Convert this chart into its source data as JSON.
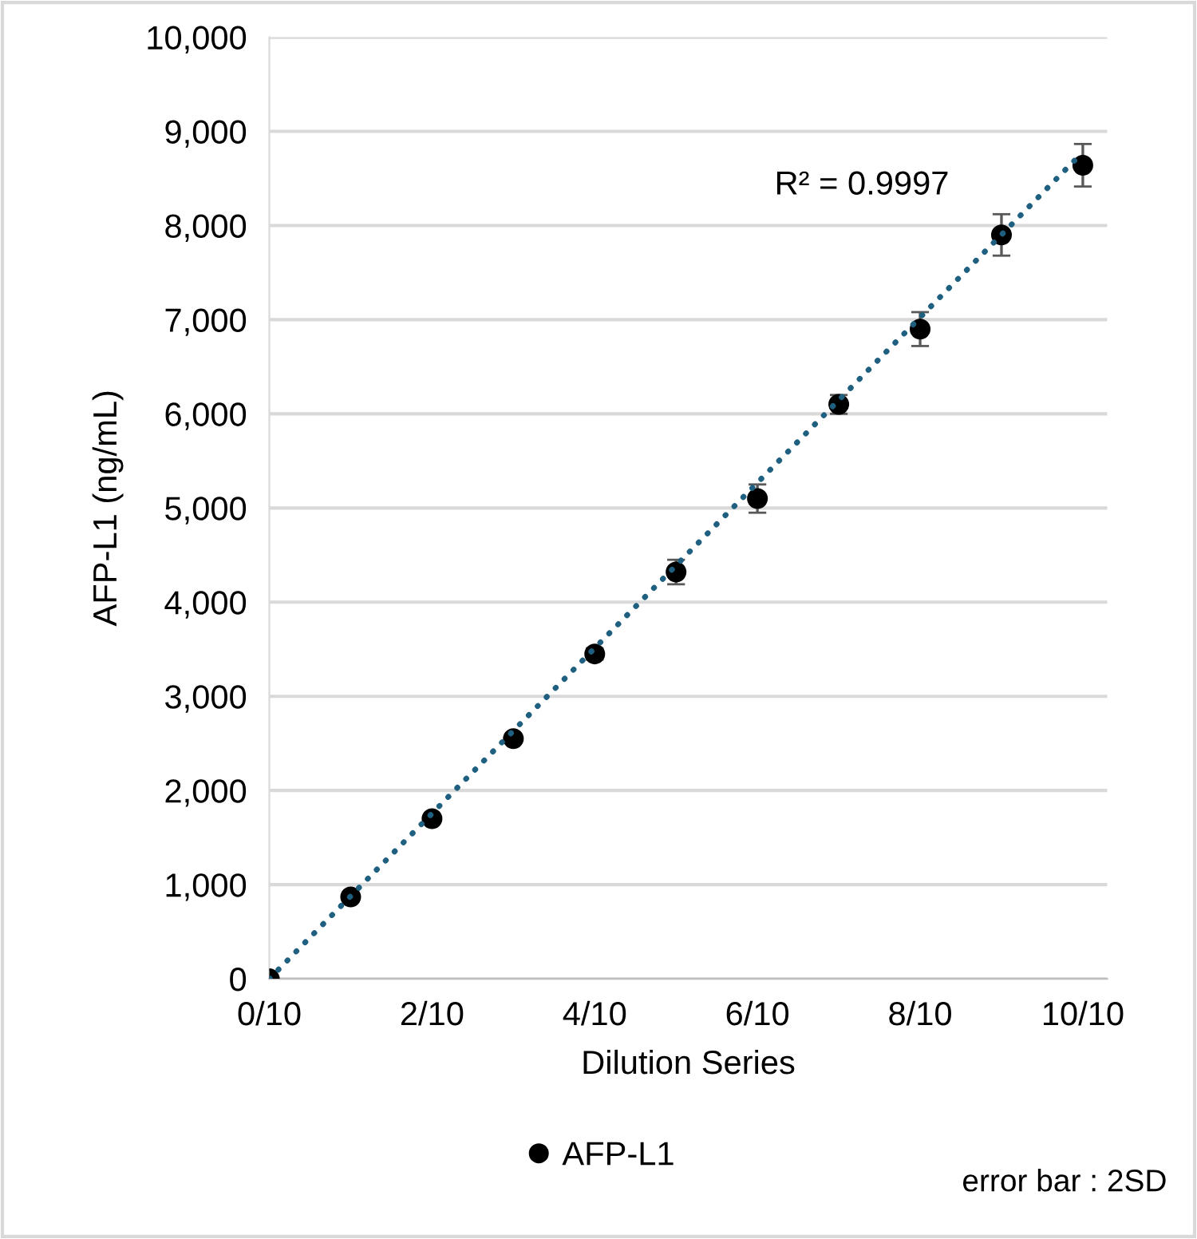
{
  "chart_data": {
    "type": "scatter",
    "xlabel": "Dilution Series",
    "ylabel": "AFP-L1 (ng/mL)",
    "xlim": [
      0,
      1.03
    ],
    "ylim": [
      0,
      10000
    ],
    "xticks": [
      {
        "value": 0,
        "label": "0/10"
      },
      {
        "value": 0.2,
        "label": "2/10"
      },
      {
        "value": 0.4,
        "label": "4/10"
      },
      {
        "value": 0.6,
        "label": "6/10"
      },
      {
        "value": 0.8,
        "label": "8/10"
      },
      {
        "value": 1.0,
        "label": "10/10"
      }
    ],
    "yticks": [
      {
        "value": 0,
        "label": "0"
      },
      {
        "value": 1000,
        "label": "1,000"
      },
      {
        "value": 2000,
        "label": "2,000"
      },
      {
        "value": 3000,
        "label": "3,000"
      },
      {
        "value": 4000,
        "label": "4,000"
      },
      {
        "value": 5000,
        "label": "5,000"
      },
      {
        "value": 6000,
        "label": "6,000"
      },
      {
        "value": 7000,
        "label": "7,000"
      },
      {
        "value": 8000,
        "label": "8,000"
      },
      {
        "value": 9000,
        "label": "9,000"
      },
      {
        "value": 10000,
        "label": "10,000"
      }
    ],
    "grid": "y",
    "legend": "bottom",
    "series": [
      {
        "name": "AFP-L1",
        "marker": "circle",
        "color": "#000000",
        "x": [
          0,
          0.1,
          0.2,
          0.3,
          0.4,
          0.5,
          0.6,
          0.7,
          0.8,
          0.9,
          1.0
        ],
        "values": [
          0,
          870,
          1700,
          2550,
          3450,
          4320,
          5100,
          6100,
          6900,
          7900,
          8640
        ],
        "errors": [
          null,
          null,
          null,
          null,
          60,
          130,
          150,
          100,
          180,
          220,
          226
        ]
      },
      {
        "type": "line",
        "color": "#1f5f80",
        "line_style": "dotted",
        "x": [
          0,
          1.0
        ],
        "values": [
          0,
          8780
        ]
      }
    ],
    "annotations": [
      "R² = 0.9997",
      "error bar : 2SD"
    ]
  }
}
